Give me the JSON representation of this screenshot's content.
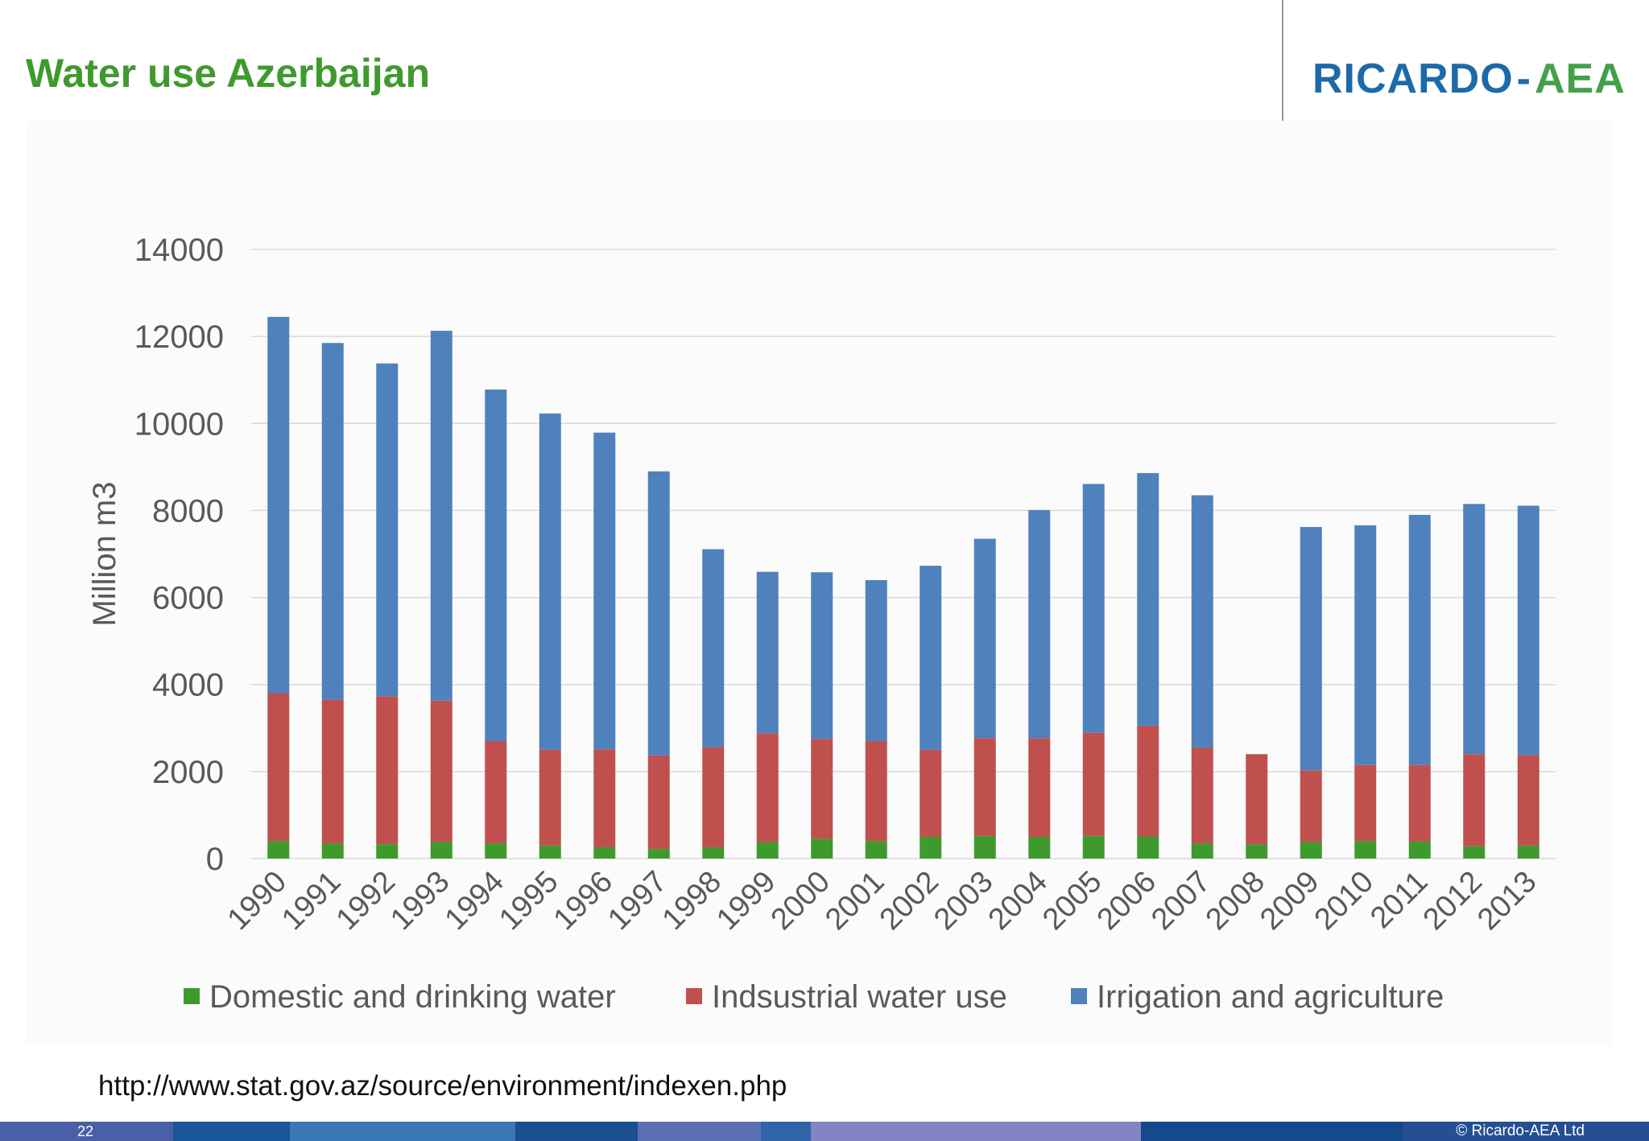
{
  "slide": {
    "title": "Water use Azerbaijan",
    "logo": {
      "brand": "RICARDO",
      "separator": "-",
      "suffix": "AEA"
    },
    "source_url": "http://www.stat.gov.az/source/environment/indexen.php",
    "page_number": "22",
    "copyright": "© Ricardo-AEA Ltd"
  },
  "colors": {
    "title": "#3f9a2e",
    "domestic": "#3f9a2e",
    "industrial": "#c0504d",
    "irrigation": "#4f81bd"
  },
  "chart_data": {
    "type": "bar",
    "stacked": true,
    "title": "",
    "xlabel": "",
    "ylabel": "Million m3",
    "ylim": [
      0,
      14000
    ],
    "yticks": [
      "0",
      "2000",
      "4000",
      "6000",
      "8000",
      "10000",
      "12000",
      "14000"
    ],
    "categories": [
      "1990",
      "1991",
      "1992",
      "1993",
      "1994",
      "1995",
      "1996",
      "1997",
      "1998",
      "1999",
      "2000",
      "2001",
      "2002",
      "2003",
      "2004",
      "2005",
      "2006",
      "2007",
      "2008",
      "2009",
      "2010",
      "2011",
      "2012",
      "2013"
    ],
    "series": [
      {
        "name": "Domestic and drinking water",
        "color": "#3f9a2e",
        "values": [
          400,
          350,
          330,
          380,
          350,
          300,
          260,
          220,
          260,
          380,
          450,
          400,
          500,
          520,
          500,
          520,
          510,
          350,
          330,
          380,
          400,
          390,
          280,
          300
        ]
      },
      {
        "name": "Indsustrial water use",
        "color": "#c0504d",
        "values": [
          3400,
          3300,
          3400,
          3250,
          2350,
          2200,
          2250,
          2150,
          2300,
          2500,
          2300,
          2300,
          2000,
          2250,
          2270,
          2370,
          2540,
          2200,
          2070,
          1650,
          1750,
          1760,
          2120,
          2080
        ]
      },
      {
        "name": "Irrigation and agriculture",
        "color": "#4f81bd",
        "values": [
          8650,
          8200,
          7650,
          8500,
          8080,
          7730,
          7280,
          6530,
          4550,
          3710,
          3830,
          3700,
          4230,
          4580,
          5240,
          5720,
          5810,
          5800,
          0,
          5590,
          5510,
          5750,
          5750,
          5730
        ]
      }
    ],
    "legend_position": "bottom",
    "grid": true
  }
}
